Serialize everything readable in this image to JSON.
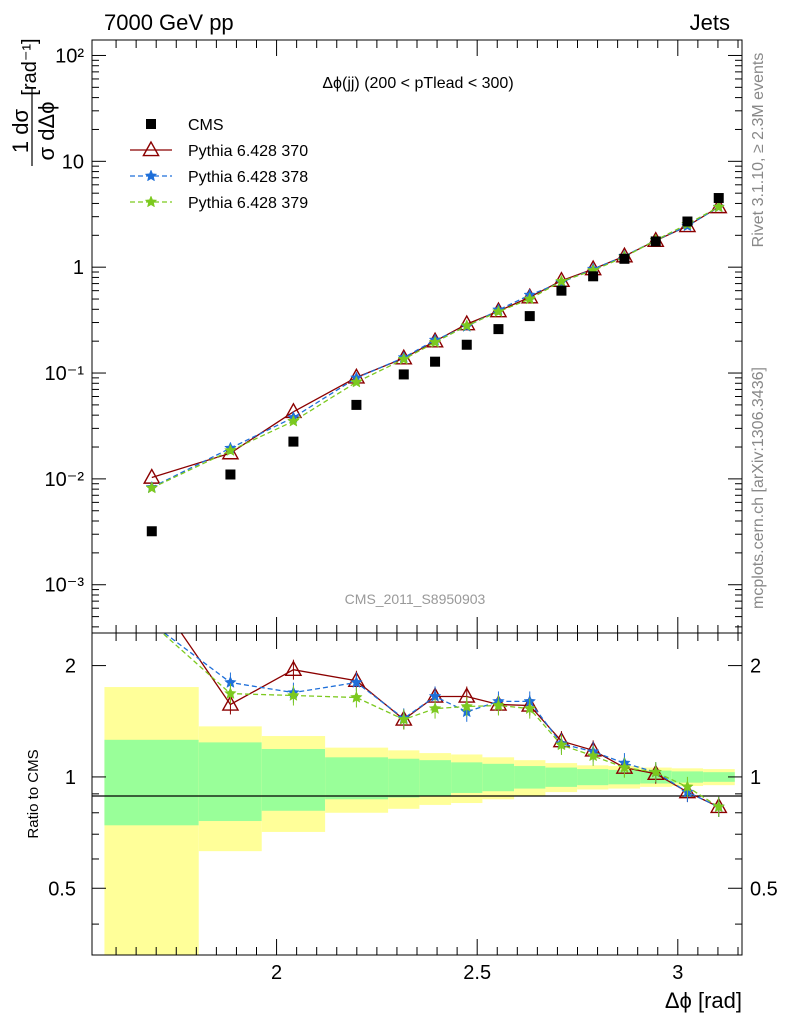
{
  "header": {
    "left": "7000 GeV pp",
    "right": "Jets"
  },
  "side_labels": {
    "rivet": "Rivet 3.1.10, ≥ 2.3M events",
    "ref": "mcplots.cern.ch [arXiv:1306.3436]"
  },
  "watermark": "CMS_2011_S8950903",
  "chart_data": {
    "type": "scatter",
    "title": "Δϕ(jj) (200 < pTlead <  300)",
    "ylabel": "1/σ dσ/dΔϕ [rad⁻¹]",
    "xlabel": "Δϕ [rad]",
    "ratio_ylabel": "Ratio to CMS",
    "y_scale": "log",
    "ylim": [
      0.00035,
      140
    ],
    "xlim": [
      1.54,
      3.16
    ],
    "ratio_ylim": [
      0.33,
      2.45
    ],
    "x_ticks": [
      "2",
      "2.5",
      "3"
    ],
    "y_ticks": [
      "10⁻³",
      "10⁻²",
      "10⁻¹",
      "1",
      "10",
      "10²"
    ],
    "ratio_ticks": [
      "0.5",
      "1",
      "2"
    ],
    "legend_position": "top-left",
    "x": [
      1.689,
      1.885,
      2.042,
      2.199,
      2.317,
      2.395,
      2.474,
      2.553,
      2.631,
      2.71,
      2.789,
      2.867,
      2.945,
      3.024,
      3.102
    ],
    "bin_edges": [
      1.571,
      1.806,
      1.963,
      2.121,
      2.278,
      2.356,
      2.435,
      2.513,
      2.592,
      2.67,
      2.749,
      2.827,
      2.906,
      2.985,
      3.063,
      3.142
    ],
    "data": {
      "name": "CMS",
      "color": "#000000",
      "values": [
        0.0032,
        0.011,
        0.0225,
        0.05,
        0.097,
        0.128,
        0.185,
        0.26,
        0.345,
        0.6,
        0.82,
        1.2,
        1.75,
        2.7,
        4.5
      ],
      "band_inner": [
        0.26,
        0.24,
        0.19,
        0.13,
        0.12,
        0.11,
        0.095,
        0.085,
        0.07,
        0.06,
        0.05,
        0.045,
        0.04,
        0.035,
        0.03
      ],
      "band_outer": [
        0.75,
        0.37,
        0.29,
        0.2,
        0.18,
        0.16,
        0.15,
        0.13,
        0.11,
        0.09,
        0.075,
        0.07,
        0.06,
        0.055,
        0.05
      ]
    },
    "series": [
      {
        "name": "Pythia 6.428 370",
        "color": "#8b0000",
        "marker": "open-triangle",
        "line": "solid",
        "values": [
          0.0103,
          0.0175,
          0.043,
          0.091,
          0.138,
          0.2,
          0.29,
          0.385,
          0.52,
          0.745,
          0.96,
          1.27,
          1.78,
          2.45,
          3.7
        ],
        "ratio": [
          3.2,
          1.57,
          1.95,
          1.82,
          1.43,
          1.65,
          1.65,
          1.57,
          1.56,
          1.25,
          1.18,
          1.06,
          1.02,
          0.91,
          0.83
        ]
      },
      {
        "name": "Pythia 6.428 378",
        "color": "#1e6fd9",
        "marker": "star",
        "line": "dashed",
        "values": [
          0.0083,
          0.0195,
          0.038,
          0.09,
          0.14,
          0.205,
          0.275,
          0.395,
          0.545,
          0.72,
          0.96,
          1.27,
          1.8,
          2.45,
          3.7
        ],
        "ratio": [
          2.6,
          1.8,
          1.69,
          1.8,
          1.44,
          1.65,
          1.5,
          1.6,
          1.6,
          1.23,
          1.17,
          1.09,
          1.03,
          0.91,
          0.83
        ]
      },
      {
        "name": "Pythia 6.428 379",
        "color": "#7cc91f",
        "marker": "star",
        "line": "dashed",
        "values": [
          0.0082,
          0.0185,
          0.035,
          0.082,
          0.135,
          0.195,
          0.28,
          0.38,
          0.5,
          0.735,
          0.93,
          1.25,
          1.8,
          2.55,
          3.7
        ],
        "ratio": [
          2.6,
          1.68,
          1.66,
          1.64,
          1.43,
          1.53,
          1.55,
          1.56,
          1.53,
          1.22,
          1.14,
          1.06,
          1.03,
          0.94,
          0.83
        ]
      }
    ]
  }
}
